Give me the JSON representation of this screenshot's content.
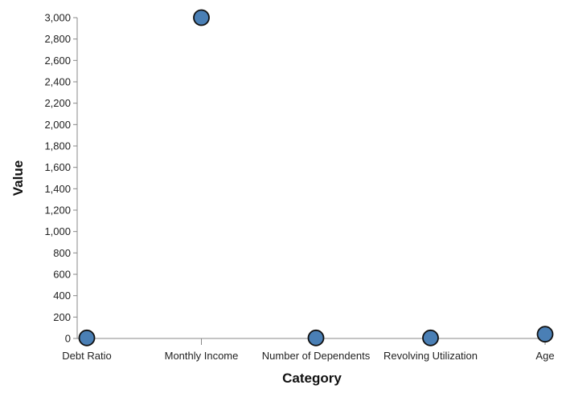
{
  "chart_data": {
    "type": "scatter",
    "categories": [
      "Debt Ratio",
      "Monthly Income",
      "Number of Dependents",
      "Revolving Utilization",
      "Age"
    ],
    "values": [
      5,
      3000,
      5,
      5,
      40
    ],
    "xlabel": "Category",
    "ylabel": "Value",
    "ylim": [
      0,
      3000
    ],
    "yticks": [
      0,
      200,
      400,
      600,
      800,
      1000,
      1200,
      1400,
      1600,
      1800,
      2000,
      2200,
      2400,
      2600,
      2800,
      3000
    ],
    "ytick_labels": [
      "0",
      "200",
      "400",
      "600",
      "800",
      "1,000",
      "1,200",
      "1,400",
      "1,600",
      "1,800",
      "2,000",
      "2,200",
      "2,400",
      "2,600",
      "2,800",
      "3,000"
    ],
    "grid": false,
    "marker_color": "#4a7fb5",
    "marker_edge_color": "#111111"
  }
}
